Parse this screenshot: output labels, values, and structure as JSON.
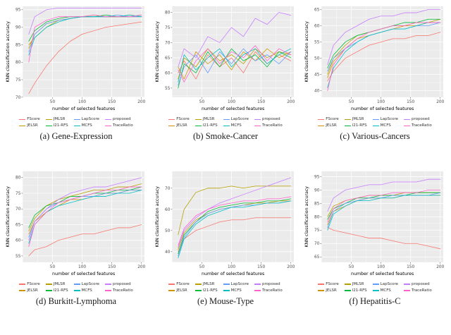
{
  "style": {
    "panel_bg": "#EBEBEB",
    "grid_color": "#FFFFFF",
    "tick_label_color": "#4D4D4D",
    "axis_title_color": "#000000"
  },
  "chart_data": [
    {
      "type": "line",
      "caption": "(a) Gene-Expression",
      "xlabel": "number of selected features",
      "ylabel": "KNN classification accuracy",
      "xlim": [
        0,
        205
      ],
      "ylim": [
        70,
        96
      ],
      "xticks": [
        50,
        100,
        150,
        200
      ],
      "yticks": [
        70,
        75,
        80,
        85,
        90,
        95
      ],
      "grid": true,
      "legend_position": "bottom",
      "x": [
        10,
        20,
        40,
        60,
        80,
        100,
        120,
        140,
        160,
        180,
        200
      ],
      "series": [
        {
          "name": "FScore",
          "color": "#F8766D",
          "values": [
            71,
            74,
            79,
            83,
            86,
            88,
            89,
            90,
            90.5,
            91,
            91.5
          ]
        },
        {
          "name": "JELSR",
          "color": "#CD9600",
          "values": [
            84,
            88,
            91,
            92,
            92.5,
            93,
            93,
            93,
            93,
            93,
            93
          ]
        },
        {
          "name": "JMLSR",
          "color": "#B79F00",
          "values": [
            85,
            87,
            90,
            92,
            92.5,
            93,
            93.5,
            93,
            93,
            93.5,
            93
          ]
        },
        {
          "name": "l21-RFS",
          "color": "#00BA38",
          "values": [
            86,
            89,
            91.5,
            92.5,
            93,
            93,
            93,
            93.5,
            93,
            93,
            93.5
          ]
        },
        {
          "name": "LapScore",
          "color": "#619CFF",
          "values": [
            83,
            88,
            91,
            92,
            92.5,
            93,
            93,
            93,
            93.5,
            93,
            93
          ]
        },
        {
          "name": "MCFS",
          "color": "#00BFC4",
          "values": [
            82,
            87,
            90,
            91.5,
            92.5,
            93,
            93,
            93,
            93,
            93.5,
            93
          ]
        },
        {
          "name": "proposed",
          "color": "#C77CFF",
          "values": [
            88,
            93,
            95,
            95.5,
            95.5,
            95.5,
            95.5,
            95.5,
            95.5,
            95.5,
            95.5
          ]
        },
        {
          "name": "TraceRatio",
          "color": "#FF61CC",
          "values": [
            80,
            90,
            92,
            93,
            93,
            93,
            93.5,
            93,
            93,
            93,
            93.5
          ]
        }
      ]
    },
    {
      "type": "line",
      "caption": "(b) Smoke-Cancer",
      "xlabel": "number of selected features",
      "ylabel": "KNN classification accuracy",
      "xlim": [
        0,
        205
      ],
      "ylim": [
        52,
        82
      ],
      "xticks": [
        50,
        100,
        150,
        200
      ],
      "yticks": [
        55,
        60,
        65,
        70,
        75,
        80
      ],
      "grid": true,
      "legend_position": "bottom",
      "x": [
        10,
        20,
        40,
        60,
        80,
        100,
        120,
        140,
        160,
        180,
        200
      ],
      "series": [
        {
          "name": "FScore",
          "color": "#F8766D",
          "values": [
            60,
            64,
            58,
            66,
            62,
            65,
            60,
            67,
            63,
            66,
            64
          ]
        },
        {
          "name": "JELSR",
          "color": "#CD9600",
          "values": [
            62,
            58,
            67,
            63,
            66,
            61,
            67,
            64,
            68,
            65,
            67
          ]
        },
        {
          "name": "JMLSR",
          "color": "#B79F00",
          "values": [
            58,
            65,
            62,
            68,
            64,
            66,
            63,
            68,
            65,
            67,
            66
          ]
        },
        {
          "name": "l21-RFS",
          "color": "#00BA38",
          "values": [
            55,
            63,
            60,
            67,
            62,
            68,
            64,
            66,
            62,
            67,
            65
          ]
        },
        {
          "name": "LapScore",
          "color": "#619CFF",
          "values": [
            56,
            62,
            66,
            60,
            67,
            63,
            68,
            64,
            66,
            63,
            67
          ]
        },
        {
          "name": "MCFS",
          "color": "#00BFC4",
          "values": [
            57,
            66,
            61,
            65,
            68,
            62,
            66,
            68,
            63,
            66,
            68
          ]
        },
        {
          "name": "proposed",
          "color": "#C77CFF",
          "values": [
            62,
            68,
            65,
            72,
            70,
            75,
            72,
            78,
            76,
            80,
            79
          ]
        },
        {
          "name": "TraceRatio",
          "color": "#FF61CC",
          "values": [
            61,
            57,
            64,
            68,
            63,
            67,
            65,
            69,
            64,
            68,
            66
          ]
        }
      ]
    },
    {
      "type": "line",
      "caption": "(c) Various-Cancers",
      "xlabel": "number of selected features",
      "ylabel": "KNN classification accuracy",
      "xlim": [
        0,
        205
      ],
      "ylim": [
        38,
        66
      ],
      "xticks": [
        50,
        100,
        150,
        200
      ],
      "yticks": [
        40,
        45,
        50,
        55,
        60,
        65
      ],
      "grid": true,
      "legend_position": "bottom",
      "x": [
        10,
        20,
        40,
        60,
        80,
        100,
        120,
        140,
        160,
        180,
        200
      ],
      "series": [
        {
          "name": "FScore",
          "color": "#F8766D",
          "values": [
            43,
            46,
            50,
            52,
            54,
            55,
            56,
            56,
            57,
            57,
            58
          ]
        },
        {
          "name": "JELSR",
          "color": "#CD9600",
          "values": [
            44,
            49,
            53,
            56,
            57,
            58,
            59,
            60,
            60,
            61,
            61
          ]
        },
        {
          "name": "JMLSR",
          "color": "#B79F00",
          "values": [
            45,
            50,
            54,
            57,
            58,
            59,
            60,
            60,
            61,
            61,
            62
          ]
        },
        {
          "name": "l21-RFS",
          "color": "#00BA38",
          "values": [
            47,
            51,
            55,
            57,
            58,
            59,
            60,
            61,
            61,
            62,
            62
          ]
        },
        {
          "name": "LapScore",
          "color": "#619CFF",
          "values": [
            46,
            50,
            53,
            55,
            57,
            58,
            59,
            59,
            60,
            60,
            61
          ]
        },
        {
          "name": "MCFS",
          "color": "#00BFC4",
          "values": [
            41,
            47,
            52,
            55,
            57,
            58,
            59,
            59,
            60,
            61,
            61
          ]
        },
        {
          "name": "proposed",
          "color": "#C77CFF",
          "values": [
            48,
            54,
            58,
            60,
            62,
            63,
            63,
            64,
            64,
            65,
            65
          ]
        },
        {
          "name": "TraceRatio",
          "color": "#FF61CC",
          "values": [
            40,
            48,
            53,
            56,
            58,
            59,
            60,
            60,
            61,
            61,
            61
          ]
        }
      ]
    },
    {
      "type": "line",
      "caption": "(d) Burkitt-Lymphoma",
      "xlabel": "number of selected features",
      "ylabel": "KNN classification accuracy",
      "xlim": [
        0,
        205
      ],
      "ylim": [
        53,
        82
      ],
      "xticks": [
        50,
        100,
        150,
        200
      ],
      "yticks": [
        55,
        60,
        65,
        70,
        75,
        80
      ],
      "grid": true,
      "legend_position": "bottom",
      "x": [
        10,
        20,
        40,
        60,
        80,
        100,
        120,
        140,
        160,
        180,
        200
      ],
      "series": [
        {
          "name": "FScore",
          "color": "#F8766D",
          "values": [
            55,
            57,
            58,
            60,
            61,
            62,
            62,
            63,
            64,
            64,
            65
          ]
        },
        {
          "name": "JELSR",
          "color": "#CD9600",
          "values": [
            62,
            66,
            69,
            71,
            73,
            73,
            74,
            75,
            75,
            76,
            76
          ]
        },
        {
          "name": "JMLSR",
          "color": "#B79F00",
          "values": [
            63,
            67,
            71,
            73,
            74,
            75,
            76,
            76,
            77,
            77,
            78
          ]
        },
        {
          "name": "l21-RFS",
          "color": "#00BA38",
          "values": [
            64,
            68,
            71,
            72,
            74,
            74,
            75,
            75,
            76,
            76,
            77
          ]
        },
        {
          "name": "LapScore",
          "color": "#619CFF",
          "values": [
            61,
            66,
            70,
            72,
            73,
            74,
            74,
            75,
            75,
            76,
            76
          ]
        },
        {
          "name": "MCFS",
          "color": "#00BFC4",
          "values": [
            59,
            65,
            69,
            71,
            72,
            73,
            74,
            74,
            75,
            75,
            76
          ]
        },
        {
          "name": "proposed",
          "color": "#C77CFF",
          "values": [
            60,
            66,
            70,
            73,
            75,
            76,
            77,
            77,
            78,
            79,
            80
          ]
        },
        {
          "name": "TraceRatio",
          "color": "#FF61CC",
          "values": [
            58,
            65,
            69,
            72,
            73,
            74,
            75,
            76,
            76,
            77,
            77
          ]
        }
      ]
    },
    {
      "type": "line",
      "caption": "(e) Mouse-Type",
      "xlabel": "number of selected features",
      "ylabel": "KNN classification accuracy",
      "xlim": [
        0,
        205
      ],
      "ylim": [
        35,
        78
      ],
      "xticks": [
        50,
        100,
        150,
        200
      ],
      "yticks": [
        40,
        50,
        60,
        70
      ],
      "grid": true,
      "legend_position": "bottom",
      "x": [
        10,
        20,
        40,
        60,
        80,
        100,
        120,
        140,
        160,
        180,
        200
      ],
      "series": [
        {
          "name": "FScore",
          "color": "#F8766D",
          "values": [
            40,
            46,
            50,
            52,
            54,
            55,
            55,
            56,
            56,
            56,
            56
          ]
        },
        {
          "name": "JELSR",
          "color": "#CD9600",
          "values": [
            41,
            49,
            55,
            58,
            60,
            61,
            62,
            63,
            63,
            64,
            64
          ]
        },
        {
          "name": "JMLSR",
          "color": "#B79F00",
          "values": [
            48,
            60,
            68,
            70,
            70,
            71,
            70,
            71,
            71,
            71,
            71
          ]
        },
        {
          "name": "l21-RFS",
          "color": "#00BA38",
          "values": [
            39,
            48,
            54,
            59,
            61,
            62,
            63,
            63,
            64,
            64,
            65
          ]
        },
        {
          "name": "LapScore",
          "color": "#619CFF",
          "values": [
            38,
            47,
            54,
            58,
            60,
            61,
            62,
            62,
            63,
            63,
            64
          ]
        },
        {
          "name": "MCFS",
          "color": "#00BFC4",
          "values": [
            37,
            46,
            53,
            57,
            59,
            61,
            61,
            62,
            63,
            63,
            64
          ]
        },
        {
          "name": "proposed",
          "color": "#C77CFF",
          "values": [
            42,
            50,
            56,
            60,
            63,
            65,
            67,
            69,
            71,
            73,
            75
          ]
        },
        {
          "name": "TraceRatio",
          "color": "#FF61CC",
          "values": [
            43,
            51,
            57,
            60,
            62,
            63,
            64,
            64,
            65,
            65,
            66
          ]
        }
      ]
    },
    {
      "type": "line",
      "caption": "(f) Hepatitis-C",
      "xlabel": "number of selected features",
      "ylabel": "KNN classification accuracy",
      "xlim": [
        0,
        205
      ],
      "ylim": [
        63,
        97
      ],
      "xticks": [
        50,
        100,
        150,
        200
      ],
      "yticks": [
        65,
        70,
        75,
        80,
        85,
        90,
        95
      ],
      "grid": true,
      "legend_position": "bottom",
      "x": [
        10,
        20,
        40,
        60,
        80,
        100,
        120,
        140,
        160,
        180,
        200
      ],
      "series": [
        {
          "name": "FScore",
          "color": "#F8766D",
          "values": [
            76,
            75,
            74,
            73,
            72,
            72,
            71,
            70,
            70,
            69,
            68
          ]
        },
        {
          "name": "JELSR",
          "color": "#CD9600",
          "values": [
            77,
            82,
            84,
            86,
            87,
            87,
            87,
            88,
            88,
            88,
            88
          ]
        },
        {
          "name": "JMLSR",
          "color": "#B79F00",
          "values": [
            80,
            84,
            86,
            87,
            88,
            88,
            88,
            89,
            89,
            89,
            89
          ]
        },
        {
          "name": "l21-RFS",
          "color": "#00BA38",
          "values": [
            79,
            83,
            85,
            87,
            87,
            88,
            88,
            88,
            89,
            89,
            89
          ]
        },
        {
          "name": "LapScore",
          "color": "#619CFF",
          "values": [
            76,
            82,
            85,
            86,
            87,
            87,
            88,
            88,
            88,
            88,
            89
          ]
        },
        {
          "name": "MCFS",
          "color": "#00BFC4",
          "values": [
            75,
            81,
            84,
            86,
            86,
            87,
            87,
            88,
            88,
            88,
            88
          ]
        },
        {
          "name": "proposed",
          "color": "#C77CFF",
          "values": [
            82,
            87,
            90,
            91,
            92,
            92,
            93,
            93,
            93,
            94,
            94
          ]
        },
        {
          "name": "TraceRatio",
          "color": "#FF61CC",
          "values": [
            78,
            83,
            86,
            87,
            88,
            88,
            89,
            89,
            89,
            90,
            90
          ]
        }
      ]
    }
  ]
}
